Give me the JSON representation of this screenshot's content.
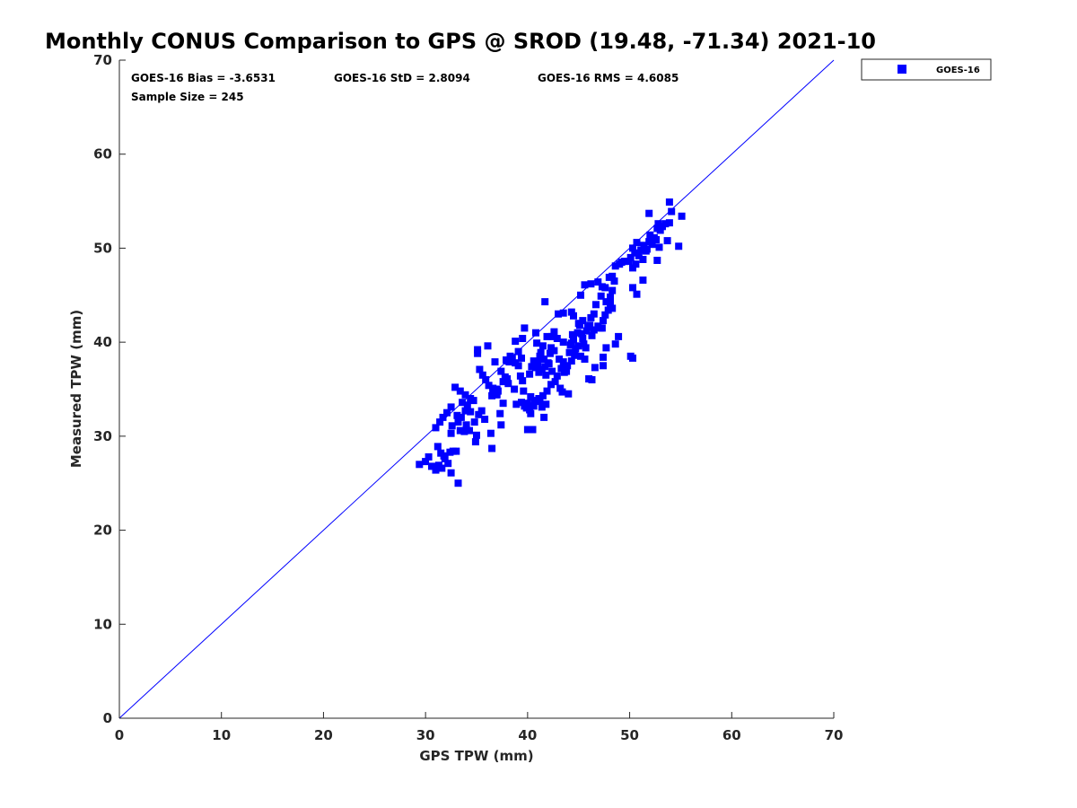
{
  "chart_data": {
    "type": "scatter",
    "title": "Monthly CONUS Comparison to GPS @ SROD (19.48, -71.34) 2021-10",
    "xlabel": "GPS TPW (mm)",
    "ylabel": "Measured TPW (mm)",
    "xlim": [
      0,
      70
    ],
    "ylim": [
      0,
      70
    ],
    "xticks": [
      0,
      10,
      20,
      30,
      40,
      50,
      60,
      70
    ],
    "yticks": [
      0,
      10,
      20,
      30,
      40,
      50,
      60,
      70
    ],
    "grid": false,
    "legend_position": "outside-top-right",
    "reference_line": {
      "name": "1:1 line",
      "x": [
        0,
        70
      ],
      "y": [
        0,
        70
      ],
      "color": "#0000ff"
    },
    "stats": {
      "bias": "GOES-16 Bias = -3.6531",
      "std": "GOES-16 StD = 2.8094",
      "rms": "GOES-16 RMS = 4.6085",
      "sample": "Sample Size = 245"
    },
    "series": [
      {
        "name": "GOES-16",
        "color": "#0000ff",
        "marker": "square",
        "points": [
          [
            29.4,
            27.0
          ],
          [
            30.0,
            27.3
          ],
          [
            30.3,
            27.8
          ],
          [
            30.6,
            26.8
          ],
          [
            31.0,
            26.4
          ],
          [
            31.3,
            26.9
          ],
          [
            31.6,
            26.6
          ],
          [
            31.9,
            27.6
          ],
          [
            32.2,
            27.1
          ],
          [
            32.5,
            26.1
          ],
          [
            32.7,
            28.4
          ],
          [
            33.2,
            25.0
          ],
          [
            31.2,
            28.9
          ],
          [
            31.5,
            28.2
          ],
          [
            31.8,
            27.9
          ],
          [
            32.4,
            28.3
          ],
          [
            33.0,
            28.4
          ],
          [
            32.5,
            30.3
          ],
          [
            32.6,
            31.1
          ],
          [
            33.2,
            31.5
          ],
          [
            33.4,
            30.6
          ],
          [
            33.8,
            30.5
          ],
          [
            34.0,
            31.2
          ],
          [
            34.3,
            30.6
          ],
          [
            33.5,
            32.0
          ],
          [
            33.9,
            32.7
          ],
          [
            34.4,
            32.6
          ],
          [
            33.1,
            32.2
          ],
          [
            33.6,
            33.6
          ],
          [
            34.1,
            33.3
          ],
          [
            34.8,
            31.5
          ],
          [
            35.2,
            32.3
          ],
          [
            35.5,
            32.7
          ],
          [
            35.8,
            31.8
          ],
          [
            35.0,
            30.1
          ],
          [
            34.9,
            29.4
          ],
          [
            36.5,
            28.7
          ],
          [
            36.4,
            30.3
          ],
          [
            36.5,
            34.3
          ],
          [
            36.6,
            35.1
          ],
          [
            37.0,
            35.0
          ],
          [
            37.3,
            32.4
          ],
          [
            37.4,
            31.2
          ],
          [
            37.6,
            33.5
          ],
          [
            37.1,
            34.8
          ],
          [
            37.6,
            35.8
          ],
          [
            38.0,
            36.1
          ],
          [
            38.2,
            37.9
          ],
          [
            38.5,
            38.3
          ],
          [
            38.1,
            38.0
          ],
          [
            38.8,
            37.8
          ],
          [
            39.1,
            37.5
          ],
          [
            39.4,
            38.3
          ],
          [
            39.3,
            36.4
          ],
          [
            39.6,
            34.8
          ],
          [
            39.7,
            33.2
          ],
          [
            39.5,
            35.9
          ],
          [
            40.0,
            33.5
          ],
          [
            40.3,
            34.2
          ],
          [
            40.0,
            30.7
          ],
          [
            40.5,
            30.7
          ],
          [
            40.3,
            32.4
          ],
          [
            40.7,
            33.8
          ],
          [
            41.1,
            34.0
          ],
          [
            41.4,
            33.1
          ],
          [
            41.6,
            32.0
          ],
          [
            41.8,
            33.4
          ],
          [
            40.2,
            36.6
          ],
          [
            40.4,
            37.4
          ],
          [
            40.6,
            38.0
          ],
          [
            40.8,
            37.3
          ],
          [
            41.0,
            37.8
          ],
          [
            41.2,
            38.5
          ],
          [
            41.4,
            37.1
          ],
          [
            41.6,
            38.2
          ],
          [
            41.8,
            36.5
          ],
          [
            42.0,
            37.8
          ],
          [
            42.2,
            38.8
          ],
          [
            41.5,
            39.6
          ],
          [
            41.9,
            40.6
          ],
          [
            42.3,
            39.4
          ],
          [
            40.9,
            39.9
          ],
          [
            40.8,
            41.0
          ],
          [
            41.3,
            38.9
          ],
          [
            41.1,
            36.8
          ],
          [
            41.7,
            37.4
          ],
          [
            42.1,
            37.7
          ],
          [
            42.4,
            36.9
          ],
          [
            42.6,
            39.1
          ],
          [
            42.9,
            40.4
          ],
          [
            43.1,
            38.2
          ],
          [
            43.3,
            37.2
          ],
          [
            43.5,
            37.9
          ],
          [
            43.2,
            35.1
          ],
          [
            43.4,
            34.7
          ],
          [
            44.0,
            34.5
          ],
          [
            43.8,
            36.9
          ],
          [
            44.1,
            38.9
          ],
          [
            44.3,
            39.9
          ],
          [
            44.5,
            40.3
          ],
          [
            44.7,
            39.3
          ],
          [
            44.4,
            40.8
          ],
          [
            44.9,
            41.0
          ],
          [
            45.1,
            41.8
          ],
          [
            45.3,
            40.9
          ],
          [
            45.5,
            39.8
          ],
          [
            45.7,
            39.4
          ],
          [
            45.9,
            41.6
          ],
          [
            46.1,
            41.8
          ],
          [
            46.3,
            40.7
          ],
          [
            46.5,
            41.3
          ],
          [
            46.9,
            41.7
          ],
          [
            47.1,
            41.5
          ],
          [
            47.4,
            42.3
          ],
          [
            47.6,
            42.9
          ],
          [
            47.9,
            43.4
          ],
          [
            47.7,
            44.3
          ],
          [
            48.1,
            44.8
          ],
          [
            48.3,
            45.5
          ],
          [
            48.5,
            46.5
          ],
          [
            48.0,
            46.9
          ],
          [
            47.3,
            45.9
          ],
          [
            46.9,
            46.4
          ],
          [
            46.2,
            46.2
          ],
          [
            45.6,
            46.1
          ],
          [
            45.2,
            45.0
          ],
          [
            44.3,
            43.2
          ],
          [
            43.0,
            43.0
          ],
          [
            43.5,
            43.1
          ],
          [
            44.5,
            42.8
          ],
          [
            41.7,
            44.3
          ],
          [
            39.7,
            41.5
          ],
          [
            39.5,
            40.4
          ],
          [
            38.8,
            40.1
          ],
          [
            39.1,
            39.0
          ],
          [
            38.3,
            38.5
          ],
          [
            37.9,
            38.1
          ],
          [
            35.1,
            39.2
          ],
          [
            35.1,
            38.8
          ],
          [
            36.1,
            39.6
          ],
          [
            36.8,
            37.9
          ],
          [
            38.9,
            33.4
          ],
          [
            39.4,
            33.6
          ],
          [
            46.3,
            36.0
          ],
          [
            46.0,
            36.1
          ],
          [
            46.6,
            37.3
          ],
          [
            47.4,
            37.5
          ],
          [
            47.4,
            38.4
          ],
          [
            47.7,
            39.4
          ],
          [
            48.6,
            39.8
          ],
          [
            48.9,
            40.6
          ],
          [
            50.1,
            38.5
          ],
          [
            50.3,
            38.3
          ],
          [
            45.6,
            38.2
          ],
          [
            45.2,
            38.5
          ],
          [
            44.2,
            39.7
          ],
          [
            42.4,
            40.6
          ],
          [
            42.6,
            41.1
          ],
          [
            43.5,
            40.0
          ],
          [
            45.4,
            42.3
          ],
          [
            45.0,
            42.0
          ],
          [
            46.5,
            43.0
          ],
          [
            47.3,
            41.5
          ],
          [
            48.3,
            43.6
          ],
          [
            48.1,
            44.1
          ],
          [
            49.0,
            48.3
          ],
          [
            49.5,
            48.6
          ],
          [
            49.9,
            48.6
          ],
          [
            50.3,
            47.9
          ],
          [
            50.6,
            48.3
          ],
          [
            50.1,
            49.0
          ],
          [
            50.5,
            49.5
          ],
          [
            50.9,
            49.2
          ],
          [
            51.1,
            49.8
          ],
          [
            51.4,
            50.3
          ],
          [
            51.7,
            49.9
          ],
          [
            51.9,
            50.7
          ],
          [
            52.2,
            50.4
          ],
          [
            52.6,
            50.9
          ],
          [
            52.9,
            50.1
          ],
          [
            50.3,
            50.0
          ],
          [
            50.7,
            50.6
          ],
          [
            51.3,
            48.8
          ],
          [
            51.6,
            49.7
          ],
          [
            52.0,
            51.4
          ],
          [
            52.4,
            51.1
          ],
          [
            52.7,
            52.1
          ],
          [
            53.0,
            51.9
          ],
          [
            53.2,
            52.3
          ],
          [
            53.5,
            52.6
          ],
          [
            52.8,
            52.6
          ],
          [
            53.9,
            52.7
          ],
          [
            53.7,
            50.8
          ],
          [
            54.1,
            53.9
          ],
          [
            53.9,
            54.9
          ],
          [
            55.1,
            53.4
          ],
          [
            54.8,
            50.2
          ],
          [
            51.9,
            53.7
          ],
          [
            52.7,
            48.7
          ],
          [
            51.3,
            46.6
          ],
          [
            50.7,
            45.1
          ],
          [
            50.3,
            45.8
          ],
          [
            49.2,
            48.5
          ],
          [
            48.6,
            48.1
          ],
          [
            48.3,
            47.0
          ],
          [
            47.6,
            45.8
          ],
          [
            47.2,
            44.9
          ],
          [
            46.7,
            44.0
          ],
          [
            46.2,
            42.6
          ],
          [
            45.8,
            41.2
          ],
          [
            45.4,
            40.4
          ],
          [
            45.0,
            39.6
          ],
          [
            44.6,
            38.6
          ],
          [
            44.3,
            38.0
          ],
          [
            43.9,
            37.5
          ],
          [
            43.6,
            36.8
          ],
          [
            42.9,
            36.4
          ],
          [
            42.7,
            35.8
          ],
          [
            42.3,
            35.5
          ],
          [
            41.9,
            34.8
          ],
          [
            41.5,
            34.3
          ],
          [
            41.2,
            33.7
          ],
          [
            40.6,
            33.2
          ],
          [
            40.2,
            32.8
          ],
          [
            39.9,
            33.0
          ],
          [
            38.7,
            35.0
          ],
          [
            38.1,
            35.6
          ],
          [
            37.8,
            36.3
          ],
          [
            37.4,
            36.9
          ],
          [
            37.0,
            34.4
          ],
          [
            36.6,
            34.9
          ],
          [
            36.2,
            35.4
          ],
          [
            35.9,
            36.0
          ],
          [
            35.6,
            36.5
          ],
          [
            35.3,
            37.1
          ],
          [
            34.7,
            33.8
          ],
          [
            34.4,
            34.0
          ],
          [
            33.9,
            34.4
          ],
          [
            33.4,
            34.8
          ],
          [
            32.9,
            35.2
          ],
          [
            32.5,
            33.1
          ],
          [
            32.1,
            32.5
          ],
          [
            31.7,
            32.0
          ],
          [
            31.4,
            31.5
          ],
          [
            31.0,
            30.9
          ]
        ]
      }
    ]
  }
}
